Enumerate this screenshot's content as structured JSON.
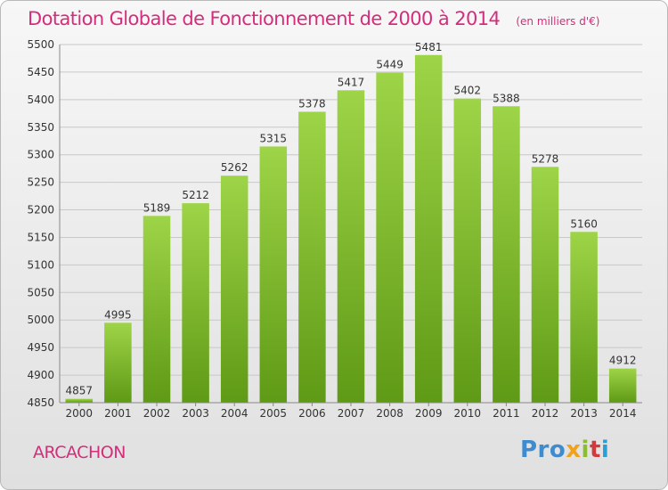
{
  "chart_data": {
    "type": "bar",
    "title": "Dotation Globale de Fonctionnement de 2000 à 2014",
    "subtitle": "(en milliers d'€)",
    "categories": [
      "2000",
      "2001",
      "2002",
      "2003",
      "2004",
      "2005",
      "2006",
      "2007",
      "2008",
      "2009",
      "2010",
      "2011",
      "2012",
      "2013",
      "2014"
    ],
    "values": [
      4857,
      4995,
      5189,
      5212,
      5262,
      5315,
      5378,
      5417,
      5449,
      5481,
      5402,
      5388,
      5278,
      5160,
      4912
    ],
    "ylim": [
      4850,
      5500
    ],
    "yticks": [
      4850,
      4900,
      4950,
      5000,
      5050,
      5100,
      5150,
      5200,
      5250,
      5300,
      5350,
      5400,
      5450,
      5500
    ],
    "grid": true,
    "bar_color": "#7fbf2a",
    "bar_color_dark": "#5f9a16"
  },
  "footer": {
    "town": "ARCACHON",
    "logo_parts": [
      "Pro",
      "x",
      "i",
      "t",
      "i"
    ]
  },
  "colors": {
    "title": "#d42d7b",
    "gridline": "#c8c8c8",
    "axis": "#888888"
  }
}
